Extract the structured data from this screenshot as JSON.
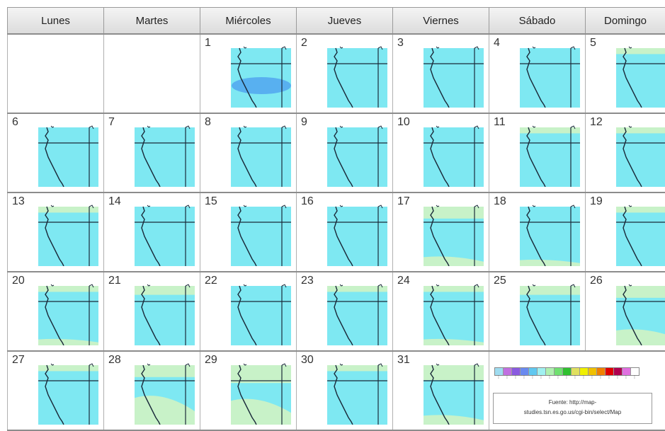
{
  "header": {
    "days": [
      "Lunes",
      "Martes",
      "Miércoles",
      "Jueves",
      "Viernes",
      "Sábado",
      "Domingo"
    ]
  },
  "calendar": {
    "weeks": [
      [
        {
          "day": ""
        },
        {
          "day": ""
        },
        {
          "day": "1",
          "special": "blob"
        },
        {
          "day": "2"
        },
        {
          "day": "3"
        },
        {
          "day": "4"
        },
        {
          "day": "5",
          "green": [
            0.0,
            0.1
          ]
        }
      ],
      [
        {
          "day": "6"
        },
        {
          "day": "7"
        },
        {
          "day": "8"
        },
        {
          "day": "9"
        },
        {
          "day": "10"
        },
        {
          "day": "11",
          "green": [
            0.0,
            0.1
          ]
        },
        {
          "day": "12",
          "green": [
            0.0,
            0.1
          ]
        }
      ],
      [
        {
          "day": "13",
          "green": [
            0.0,
            0.1
          ]
        },
        {
          "day": "14"
        },
        {
          "day": "15"
        },
        {
          "day": "16"
        },
        {
          "day": "17",
          "green": [
            0.0,
            0.2
          ],
          "greenBottom": 0.15
        },
        {
          "day": "18",
          "greenBottom": 0.1
        },
        {
          "day": "19",
          "green": [
            0.0,
            0.1
          ]
        }
      ],
      [
        {
          "day": "20",
          "green": [
            0.0,
            0.1
          ],
          "greenBottom": 0.1
        },
        {
          "day": "21",
          "green": [
            0.0,
            0.15
          ]
        },
        {
          "day": "22"
        },
        {
          "day": "23",
          "green": [
            0.0,
            0.1
          ]
        },
        {
          "day": "24",
          "green": [
            0.0,
            0.1
          ],
          "greenBottom": 0.1
        },
        {
          "day": "25",
          "green": [
            0.0,
            0.15
          ]
        },
        {
          "day": "26",
          "green": [
            0.0,
            0.2
          ],
          "greenBottom": 0.25
        }
      ],
      [
        {
          "day": "27",
          "green": [
            0.0,
            0.1
          ]
        },
        {
          "day": "28",
          "green": [
            0.0,
            0.2
          ],
          "greenBottom": 0.45
        },
        {
          "day": "29",
          "green": [
            0.0,
            0.3
          ],
          "greenBottom": 0.4
        },
        {
          "day": "30",
          "green": [
            0.0,
            0.1
          ]
        },
        {
          "day": "31",
          "green": [
            0.0,
            0.25
          ],
          "greenBottom": 0.15
        }
      ]
    ]
  },
  "legend": {
    "colors": [
      "#9fdcf0",
      "#c070e0",
      "#8a5ae0",
      "#6a8af0",
      "#60c8f0",
      "#a0f0f0",
      "#b0f0b0",
      "#70e070",
      "#30c030",
      "#e0e060",
      "#f0f000",
      "#f0c000",
      "#f08000",
      "#e00000",
      "#b00050",
      "#e070e0",
      "#ffffff"
    ],
    "source": "Fuente: http://map-\nstudies.tsn.es.go.us/cgi-bin/select/Map"
  },
  "colors": {
    "sea": "#86d9ef",
    "land": "#7ee8f2",
    "green": "#c8f2c8",
    "blob": "#58b0f0",
    "coast": "#1a2a3a",
    "grid": "#1a2a3a"
  }
}
